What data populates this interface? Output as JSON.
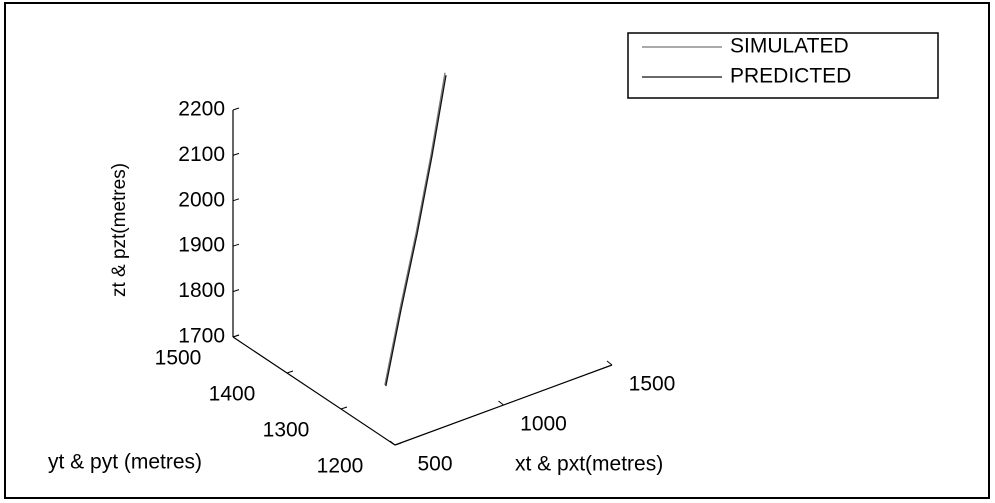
{
  "chart_data": {
    "type": "line3d",
    "xlabel": "xt & pxt(metres)",
    "ylabel": "yt & pyt (metres)",
    "zlabel": "zt & pzt(metres)",
    "xlim": [
      500,
      1500
    ],
    "ylim": [
      1200,
      1500
    ],
    "zlim": [
      1700,
      2200
    ],
    "xticks": [
      500,
      1000,
      1500
    ],
    "yticks": [
      1200,
      1300,
      1400,
      1500
    ],
    "zticks": [
      1700,
      1800,
      1900,
      2000,
      2100,
      2200
    ],
    "legend": "upper right",
    "series": [
      {
        "name": "SIMULATED",
        "color": "#777777",
        "x": [
          737,
          760,
          785,
          808,
          830
        ],
        "y": [
          1314,
          1295,
          1275,
          1257,
          1240
        ],
        "z": [
          1700,
          1880,
          2060,
          2240,
          2430
        ]
      },
      {
        "name": "PREDICTED",
        "color": "#111111",
        "x": [
          739,
          762,
          787,
          810,
          832
        ],
        "y": [
          1313,
          1294,
          1274,
          1256,
          1239
        ],
        "z": [
          1698,
          1878,
          2058,
          2238,
          2425
        ]
      }
    ]
  }
}
